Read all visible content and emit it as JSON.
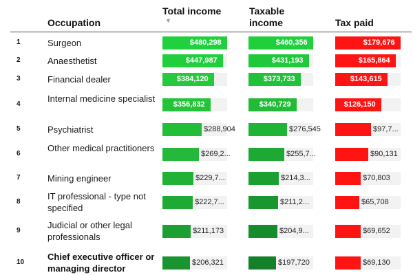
{
  "chart_data": {
    "type": "table",
    "columns": [
      "Occupation",
      "Total income",
      "Taxable income",
      "Tax paid"
    ],
    "sort_indicator": "▼",
    "rows": [
      {
        "rank": "1",
        "occupation": "Surgeon",
        "total": 480298,
        "taxable": 460356,
        "tax": 179676,
        "total_label": "$480,298",
        "taxable_label": "$460,356",
        "tax_label": "$179,676"
      },
      {
        "rank": "2",
        "occupation": "Anaesthetist",
        "total": 447987,
        "taxable": 431193,
        "tax": 165864,
        "total_label": "$447,987",
        "taxable_label": "$431,193",
        "tax_label": "$165,864"
      },
      {
        "rank": "3",
        "occupation": "Financial dealer",
        "total": 384120,
        "taxable": 373733,
        "tax": 143615,
        "total_label": "$384,120",
        "taxable_label": "$373,733",
        "tax_label": "$143,615"
      },
      {
        "rank": "4",
        "occupation": "Internal medicine specialist",
        "total": 356832,
        "taxable": 340729,
        "tax": 126150,
        "total_label": "$356,832",
        "taxable_label": "$340,729",
        "tax_label": "$126,150"
      },
      {
        "rank": "5",
        "occupation": "Psychiatrist",
        "total": 288904,
        "taxable": 276545,
        "tax": 97700,
        "total_label": "$288,904",
        "taxable_label": "$276,545",
        "tax_label": "$97,7..."
      },
      {
        "rank": "6",
        "occupation": "Other medical practitioners",
        "total": 269200,
        "taxable": 255700,
        "tax": 90131,
        "total_label": "$269,2...",
        "taxable_label": "$255,7...",
        "tax_label": "$90,131"
      },
      {
        "rank": "7",
        "occupation": "Mining engineer",
        "total": 229700,
        "taxable": 214300,
        "tax": 70803,
        "total_label": "$229,7...",
        "taxable_label": "$214,3...",
        "tax_label": "$70,803"
      },
      {
        "rank": "8",
        "occupation": "IT professional - type not specified",
        "total": 222700,
        "taxable": 211200,
        "tax": 65708,
        "total_label": "$222,7...",
        "taxable_label": "$211,2...",
        "tax_label": "$65,708"
      },
      {
        "rank": "9",
        "occupation": "Judicial or other legal professionals",
        "total": 211173,
        "taxable": 204900,
        "tax": 69652,
        "total_label": "$211,173",
        "taxable_label": "$204,9...",
        "tax_label": "$69,652"
      },
      {
        "rank": "10",
        "occupation": "Chief executive officer or managing director",
        "total": 206321,
        "taxable": 197720,
        "tax": 69130,
        "total_label": "$206,321",
        "taxable_label": "$197,720",
        "tax_label": "$69,130"
      }
    ],
    "colors": {
      "total": [
        "#1fd23d",
        "#21cf3d",
        "#26c93b",
        "#24c43a",
        "#22be38",
        "#24b93a",
        "#20b236",
        "#1faa34",
        "#1d9f32",
        "#1a9430"
      ],
      "taxable": [
        "#1fcf3c",
        "#20c83b",
        "#21c23a",
        "#22bb38",
        "#20b336",
        "#1ea934",
        "#1b9f31",
        "#19962e",
        "#178c2c",
        "#14802a"
      ],
      "tax": "#ff1414"
    }
  }
}
